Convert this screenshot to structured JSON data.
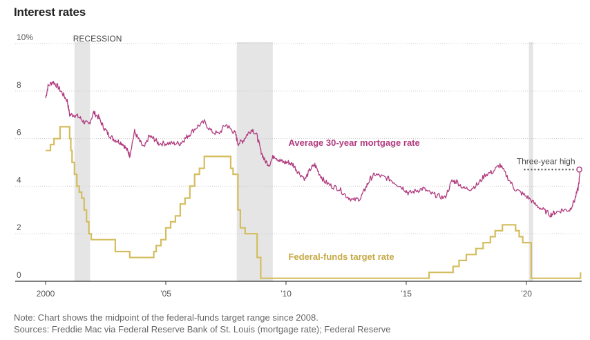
{
  "title": "Interest rates",
  "chart_data": {
    "type": "line",
    "title": "Interest rates",
    "xlabel": "",
    "ylabel": "",
    "xlim": [
      2000,
      2022.3
    ],
    "ylim": [
      0,
      10
    ],
    "y_ticks": [
      0,
      2,
      4,
      6,
      8,
      10
    ],
    "y_tick_labels": [
      "0",
      "2",
      "4",
      "6",
      "8",
      "10%"
    ],
    "x_ticks": [
      2000,
      2005,
      2010,
      2015,
      2020
    ],
    "x_tick_labels": [
      "2000",
      "’05",
      "’10",
      "’15",
      "’20"
    ],
    "recessions": [
      {
        "start": 2001.2,
        "end": 2001.85
      },
      {
        "start": 2007.95,
        "end": 2009.45
      },
      {
        "start": 2020.1,
        "end": 2020.28
      }
    ],
    "recession_label": "RECESSION",
    "series": [
      {
        "name": "Average 30-year mortgage rate",
        "color": "#b03a7f",
        "x": [
          2000,
          2000.1,
          2000.3,
          2000.5,
          2000.7,
          2000.9,
          2001.0,
          2001.2,
          2001.4,
          2001.6,
          2001.8,
          2002.0,
          2002.2,
          2002.4,
          2002.6,
          2002.8,
          2003.0,
          2003.2,
          2003.4,
          2003.5,
          2003.7,
          2003.9,
          2004.1,
          2004.3,
          2004.5,
          2004.7,
          2005.0,
          2005.3,
          2005.6,
          2005.8,
          2006.0,
          2006.3,
          2006.6,
          2006.9,
          2007.2,
          2007.5,
          2007.7,
          2007.9,
          2008.0,
          2008.2,
          2008.4,
          2008.6,
          2008.8,
          2008.95,
          2009.1,
          2009.3,
          2009.5,
          2009.7,
          2009.9,
          2010.1,
          2010.3,
          2010.5,
          2010.8,
          2011.0,
          2011.2,
          2011.4,
          2011.6,
          2011.9,
          2012.2,
          2012.5,
          2012.8,
          2013.1,
          2013.3,
          2013.5,
          2013.7,
          2014.0,
          2014.3,
          2014.6,
          2014.9,
          2015.1,
          2015.4,
          2015.7,
          2016.0,
          2016.3,
          2016.6,
          2016.9,
          2017.1,
          2017.4,
          2017.7,
          2018.0,
          2018.3,
          2018.6,
          2018.9,
          2019.2,
          2019.5,
          2019.8,
          2020.1,
          2020.4,
          2020.7,
          2021.0,
          2021.2,
          2021.5,
          2021.8,
          2022.0,
          2022.15,
          2022.25
        ],
        "values": [
          7.7,
          8.2,
          8.4,
          8.2,
          7.9,
          7.6,
          7.0,
          7.0,
          6.9,
          6.7,
          6.6,
          7.1,
          6.9,
          6.5,
          6.2,
          6.0,
          5.9,
          5.8,
          5.5,
          5.3,
          6.3,
          5.9,
          5.6,
          6.1,
          6.0,
          5.8,
          5.8,
          5.8,
          5.8,
          6.0,
          6.2,
          6.5,
          6.7,
          6.3,
          6.2,
          6.6,
          6.4,
          6.2,
          5.8,
          5.9,
          6.2,
          6.4,
          6.1,
          5.5,
          5.1,
          4.9,
          5.3,
          5.1,
          5.0,
          5.0,
          4.9,
          4.6,
          4.3,
          4.7,
          4.9,
          4.5,
          4.2,
          4.0,
          3.9,
          3.6,
          3.4,
          3.5,
          3.9,
          4.3,
          4.5,
          4.4,
          4.3,
          4.1,
          3.9,
          3.7,
          3.8,
          3.9,
          3.7,
          3.6,
          3.5,
          4.2,
          4.2,
          3.9,
          3.9,
          4.1,
          4.5,
          4.6,
          4.9,
          4.4,
          3.9,
          3.7,
          3.5,
          3.2,
          3.0,
          2.8,
          2.9,
          3.0,
          3.0,
          3.4,
          3.9,
          4.7
        ]
      },
      {
        "name": "Federal-funds target rate",
        "color": "#d4bd5f",
        "x": [
          2000,
          2000.2,
          2000.35,
          2000.6,
          2000.9,
          2001.0,
          2001.05,
          2001.1,
          2001.2,
          2001.3,
          2001.4,
          2001.5,
          2001.6,
          2001.7,
          2001.8,
          2001.9,
          2002.9,
          2003.5,
          2004.5,
          2004.6,
          2004.8,
          2005.0,
          2005.2,
          2005.4,
          2005.6,
          2005.8,
          2006.0,
          2006.2,
          2006.4,
          2006.6,
          2007.7,
          2007.8,
          2008.0,
          2008.1,
          2008.3,
          2008.8,
          2008.95,
          2015.95,
          2016.95,
          2017.2,
          2017.5,
          2017.9,
          2018.2,
          2018.5,
          2018.7,
          2019.0,
          2019.55,
          2019.7,
          2019.85,
          2020.2,
          2020.25,
          2022.1,
          2022.25
        ],
        "values": [
          5.5,
          5.75,
          6.0,
          6.5,
          6.5,
          6.0,
          5.5,
          5.0,
          4.5,
          4.0,
          3.75,
          3.5,
          3.0,
          2.5,
          2.0,
          1.75,
          1.25,
          1.0,
          1.25,
          1.5,
          1.75,
          2.25,
          2.5,
          2.75,
          3.25,
          3.5,
          4.0,
          4.5,
          4.75,
          5.25,
          4.75,
          4.5,
          3.0,
          2.25,
          2.0,
          1.0,
          0.125,
          0.375,
          0.625,
          0.875,
          1.125,
          1.375,
          1.625,
          1.875,
          2.125,
          2.375,
          2.125,
          1.875,
          1.625,
          0.125,
          0.125,
          0.125,
          0.375
        ]
      }
    ],
    "annotations": [
      {
        "text": "Three-year high",
        "x": 2022.2,
        "y": 4.7
      }
    ]
  },
  "note_lines": [
    "Note: Chart shows the midpoint of the federal-funds target range since 2008.",
    "Sources: Freddie Mac via Federal Reserve Bank of St. Louis (mortgage rate); Federal Reserve"
  ]
}
